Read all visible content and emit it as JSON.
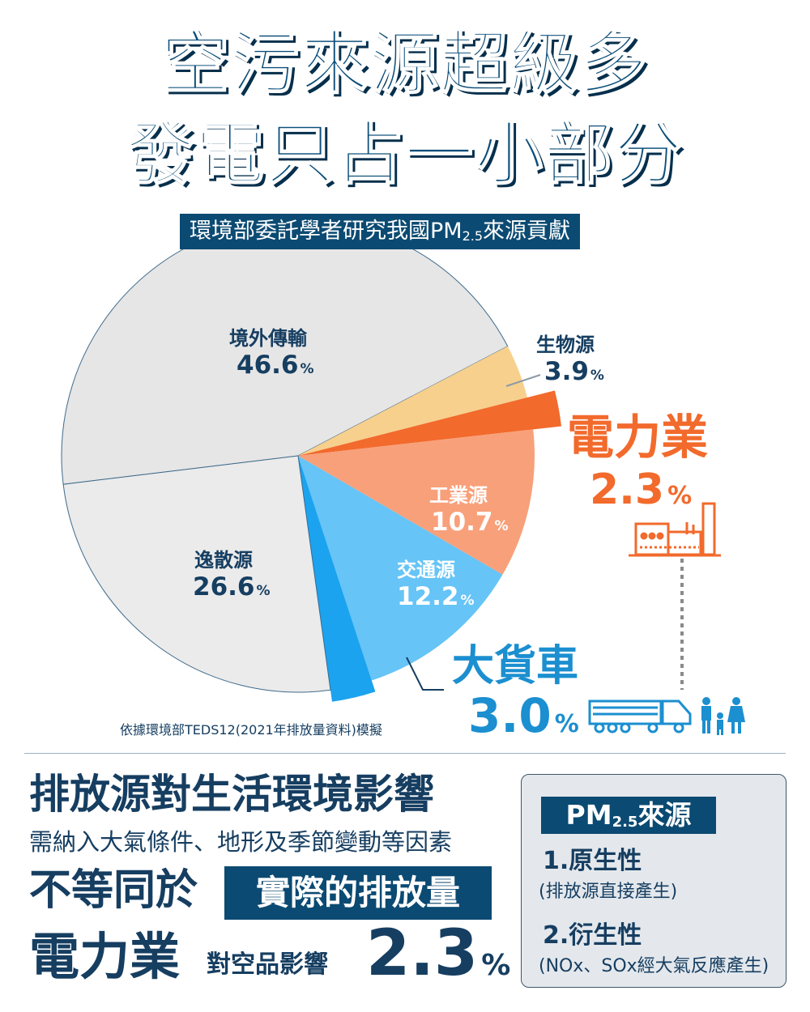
{
  "header": {
    "title_line1": "空污來源超級多",
    "title_line2": "發電只占一小部分",
    "subtitle_main": "環境部委託學者研究我國PM",
    "subtitle_sub": "2.5",
    "subtitle_tail": "來源貢獻"
  },
  "chart_data": {
    "type": "pie",
    "title": "環境部委託學者研究我國PM2.5來源貢獻",
    "unit": "%",
    "slices": [
      {
        "name": "境外傳輸",
        "value": 46.6,
        "color": "#e6e6e6"
      },
      {
        "name": "生物源",
        "value": 3.9,
        "color": "#f7d08d"
      },
      {
        "name": "電力業",
        "value": 2.3,
        "color": "#f26a2c"
      },
      {
        "name": "工業源",
        "value": 10.7,
        "color": "#f8a07a"
      },
      {
        "name": "交通源",
        "value": 12.2,
        "color": "#66c4f6"
      },
      {
        "name": "大貨車",
        "value": 3.0,
        "color": "#1ba3ef"
      },
      {
        "name": "逸散源",
        "value": 26.6,
        "color": "#ebebeb"
      }
    ],
    "labels": {
      "境外傳輸": "46.6",
      "生物源": "3.9",
      "電力業": "2.3",
      "工業源": "10.7",
      "交通源": "12.2",
      "大貨車": "3.0",
      "逸散源": "26.6"
    },
    "pct_sign": "%",
    "note": "依據環境部TEDS12(2021年排放量資料)模擬"
  },
  "bottom": {
    "heading": "排放源對生活環境影響",
    "para": "需納入大氣條件、地形及季節變動等因素",
    "line3_left": "不等同於",
    "line3_box": "實際的排放量",
    "line4_big": "電力業",
    "line4_mid": "對空品影響",
    "line4_num": "2.3",
    "line4_pct": "%"
  },
  "panel": {
    "head_main": "PM",
    "head_sub": "2.5",
    "head_tail": "來源",
    "item1_title": "1.原生性",
    "item1_desc": "(排放源直接產生)",
    "item2_title": "2.衍生性",
    "item2_desc": "(NOx、SOx經大氣反應產生)"
  },
  "colors": {
    "navy": "#0b4a72",
    "text": "#163e61",
    "power": "#f26a2c",
    "truck": "#1b8fd0"
  }
}
